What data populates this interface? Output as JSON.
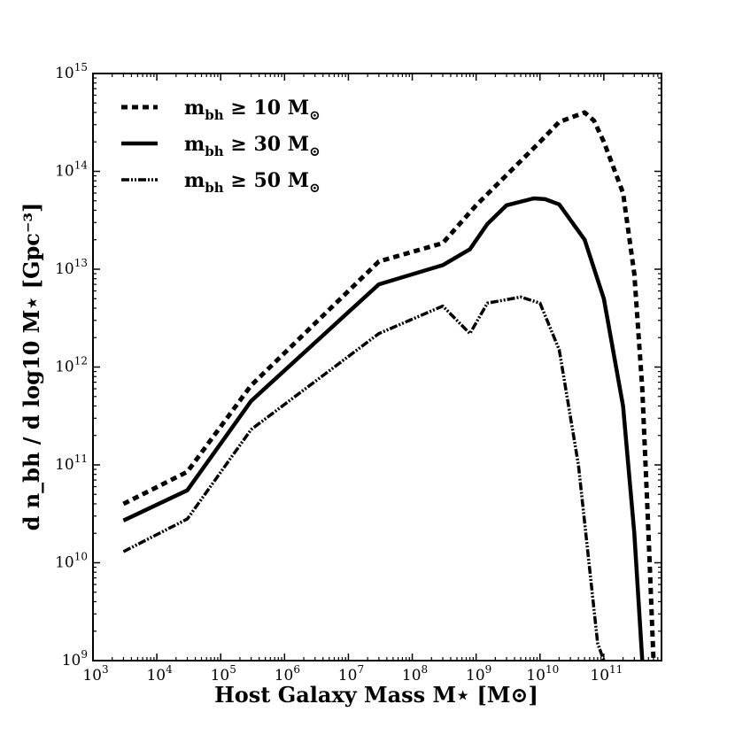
{
  "chart_data": {
    "type": "line",
    "xscale": "log",
    "yscale": "log",
    "xlim": [
      1000,
      800000000000
    ],
    "ylim": [
      1000000000,
      1000000000000000
    ],
    "xlabel": "Host Galaxy Mass M⋆ [M⊙]",
    "ylabel": "d n_bh / d log10 M⋆ [Gpc⁻³]",
    "x_ticks": [
      {
        "value": 1000,
        "base": "10",
        "exp": "3"
      },
      {
        "value": 10000,
        "base": "10",
        "exp": "4"
      },
      {
        "value": 100000,
        "base": "10",
        "exp": "5"
      },
      {
        "value": 1000000,
        "base": "10",
        "exp": "6"
      },
      {
        "value": 10000000,
        "base": "10",
        "exp": "7"
      },
      {
        "value": 100000000,
        "base": "10",
        "exp": "8"
      },
      {
        "value": 1000000000,
        "base": "10",
        "exp": "9"
      },
      {
        "value": 10000000000,
        "base": "10",
        "exp": "10"
      },
      {
        "value": 100000000000,
        "base": "10",
        "exp": "11"
      }
    ],
    "y_ticks": [
      {
        "value": 1000000000,
        "base": "10",
        "exp": "9"
      },
      {
        "value": 10000000000,
        "base": "10",
        "exp": "10"
      },
      {
        "value": 100000000000,
        "base": "10",
        "exp": "11"
      },
      {
        "value": 1000000000000,
        "base": "10",
        "exp": "12"
      },
      {
        "value": 10000000000000,
        "base": "10",
        "exp": "13"
      },
      {
        "value": 100000000000000,
        "base": "10",
        "exp": "14"
      },
      {
        "value": 1000000000000000,
        "base": "10",
        "exp": "15"
      }
    ],
    "legend_position": "top-left",
    "series": [
      {
        "name": "m_bh ≥ 10 M⊙",
        "label_main": "m",
        "label_sub": "bh",
        "label_rest": " ≥ 10 M",
        "style": "dashed",
        "points": [
          [
            3000,
            40000000000.0
          ],
          [
            30000,
            85000000000.0
          ],
          [
            300000,
            650000000000.0
          ],
          [
            30000000,
            12000000000000.0
          ],
          [
            300000000,
            18500000000000.0
          ],
          [
            1000000000,
            45000000000000.0
          ],
          [
            10000000000,
            200000000000000.0
          ],
          [
            20000000000,
            320000000000000.0
          ],
          [
            50000000000,
            400000000000000.0
          ],
          [
            70000000000,
            330000000000000.0
          ],
          [
            100000000000,
            200000000000000.0
          ],
          [
            200000000000,
            60000000000000.0
          ],
          [
            300000000000,
            9000000000000.0
          ],
          [
            400000000000,
            600000000000.0
          ],
          [
            500000000000,
            20000000000.0
          ],
          [
            600000000000,
            1000000000.0
          ]
        ]
      },
      {
        "name": "m_bh ≥ 30 M⊙",
        "label_main": "m",
        "label_sub": "bh",
        "label_rest": " ≥ 30 M",
        "style": "solid",
        "points": [
          [
            3000,
            27000000000.0
          ],
          [
            30000,
            55000000000.0
          ],
          [
            300000,
            450000000000.0
          ],
          [
            30000000,
            7000000000000.0
          ],
          [
            300000000,
            11000000000000.0
          ],
          [
            800000000,
            16000000000000.0
          ],
          [
            1500000000,
            29000000000000.0
          ],
          [
            3000000000,
            45000000000000.0
          ],
          [
            8000000000,
            53000000000000.0
          ],
          [
            12000000000,
            52000000000000.0
          ],
          [
            20000000000,
            46000000000000.0
          ],
          [
            50000000000,
            20000000000000.0
          ],
          [
            100000000000,
            5000000000000.0
          ],
          [
            200000000000,
            400000000000.0
          ],
          [
            300000000000,
            20000000000.0
          ],
          [
            400000000000,
            1000000000.0
          ]
        ]
      },
      {
        "name": "m_bh ≥ 50 M⊙",
        "label_main": "m",
        "label_sub": "bh",
        "label_rest": " ≥ 50 M",
        "style": "dashdot",
        "points": [
          [
            3000,
            13000000000.0
          ],
          [
            30000,
            28000000000.0
          ],
          [
            300000,
            230000000000.0
          ],
          [
            30000000,
            2200000000000.0
          ],
          [
            300000000,
            4200000000000.0
          ],
          [
            800000000,
            2200000000000.0
          ],
          [
            1500000000,
            4500000000000.0
          ],
          [
            5000000000,
            5200000000000.0
          ],
          [
            10000000000,
            4500000000000.0
          ],
          [
            20000000000,
            1500000000000.0
          ],
          [
            40000000000,
            100000000000.0
          ],
          [
            80000000000,
            1500000000.0
          ],
          [
            100000000000,
            1000000000.0
          ]
        ]
      }
    ]
  }
}
